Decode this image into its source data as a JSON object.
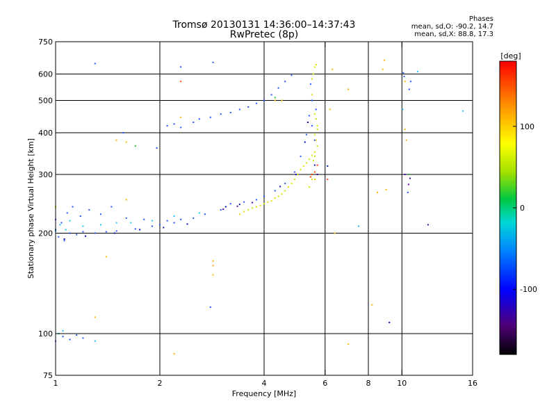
{
  "header": {
    "title_line1": "Tromsø 20130131 14:36:00–14:37:43",
    "title_line2": "RwPretec (8p)"
  },
  "phases": {
    "heading": "Phases",
    "line_o": "mean, sd,O: -90.2, 14.7",
    "line_x": "mean, sd,X:  88.8, 17.3"
  },
  "chart_data": {
    "type": "scatter",
    "xlabel": "Frequency [MHz]",
    "ylabel": "Stationary phase Virtual Height [km]",
    "x_scale": "log",
    "y_scale": "log",
    "xlim": [
      1,
      16
    ],
    "ylim": [
      75,
      750
    ],
    "x_ticks": [
      1,
      2,
      4,
      6,
      8,
      10,
      16
    ],
    "y_ticks": [
      75,
      100,
      200,
      300,
      400,
      500,
      600,
      750
    ],
    "x_gridlines": [
      2,
      4,
      6,
      8,
      10
    ],
    "y_gridlines": [
      100,
      200,
      300,
      400,
      500,
      600
    ],
    "colorbar": {
      "label": "[deg]",
      "range": [
        -180,
        180
      ],
      "ticks": [
        100,
        0,
        -100
      ],
      "colormap": "rainbow"
    },
    "series": [
      {
        "color": "#2250ff",
        "points": [
          [
            1.0,
            205
          ],
          [
            1.0,
            220
          ],
          [
            1.02,
            195
          ],
          [
            1.04,
            215
          ],
          [
            1.06,
            190
          ],
          [
            1.08,
            230
          ],
          [
            1.1,
            200
          ],
          [
            1.12,
            240
          ],
          [
            1.15,
            198
          ],
          [
            1.18,
            225
          ],
          [
            1.2,
            202
          ],
          [
            1.25,
            235
          ],
          [
            1.3,
            200
          ],
          [
            1.35,
            228
          ],
          [
            1.4,
            202
          ],
          [
            1.45,
            240
          ],
          [
            1.5,
            203
          ],
          [
            1.6,
            222
          ],
          [
            1.7,
            206
          ],
          [
            1.8,
            220
          ],
          [
            1.9,
            210
          ],
          [
            2.0,
            212
          ],
          [
            2.1,
            218
          ],
          [
            2.2,
            215
          ],
          [
            2.3,
            220
          ],
          [
            2.5,
            222
          ],
          [
            2.7,
            228
          ],
          [
            3.0,
            235
          ],
          [
            3.2,
            245
          ],
          [
            3.5,
            248
          ],
          [
            3.8,
            252
          ],
          [
            4.0,
            258
          ],
          [
            4.3,
            268
          ],
          [
            4.6,
            282
          ],
          [
            4.9,
            305
          ],
          [
            5.1,
            340
          ],
          [
            5.3,
            395
          ],
          [
            5.4,
            450
          ],
          [
            5.5,
            500
          ],
          [
            5.45,
            560
          ],
          [
            5.5,
            420
          ],
          [
            5.6,
            380
          ],
          [
            5.65,
            470
          ],
          [
            2.1,
            420
          ],
          [
            2.2,
            425
          ],
          [
            2.3,
            415
          ],
          [
            2.5,
            430
          ],
          [
            2.6,
            440
          ],
          [
            2.8,
            445
          ],
          [
            3.0,
            455
          ],
          [
            3.2,
            460
          ],
          [
            3.4,
            470
          ],
          [
            3.6,
            478
          ],
          [
            3.8,
            490
          ],
          [
            4.0,
            500
          ],
          [
            4.2,
            520
          ],
          [
            4.4,
            545
          ],
          [
            4.6,
            570
          ],
          [
            4.8,
            595
          ],
          [
            1.0,
            95
          ],
          [
            1.05,
            98
          ],
          [
            1.1,
            96
          ],
          [
            1.15,
            99
          ],
          [
            1.2,
            97
          ],
          [
            1.3,
            645
          ],
          [
            2.3,
            630
          ],
          [
            2.85,
            650
          ],
          [
            10.1,
            605
          ],
          [
            10.15,
            590
          ],
          [
            10.5,
            540
          ],
          [
            10.6,
            570
          ],
          [
            10.4,
            265
          ],
          [
            2.8,
            120
          ],
          [
            1.57,
            400
          ],
          [
            1.96,
            360
          ]
        ]
      },
      {
        "color": "#20c0ff",
        "points": [
          [
            1.0,
            203
          ],
          [
            1.03,
            212
          ],
          [
            1.07,
            205
          ],
          [
            1.1,
            218
          ],
          [
            1.2,
            210
          ],
          [
            1.35,
            212
          ],
          [
            1.5,
            215
          ],
          [
            1.65,
            215
          ],
          [
            1.9,
            218
          ],
          [
            2.2,
            225
          ],
          [
            2.6,
            230
          ],
          [
            1.05,
            102
          ],
          [
            1.02,
            100
          ],
          [
            11.1,
            610
          ],
          [
            15.0,
            465
          ],
          [
            10.05,
            470
          ],
          [
            1.3,
            95
          ],
          [
            7.5,
            210
          ]
        ]
      },
      {
        "color": "#0010b0",
        "points": [
          [
            1.06,
            192
          ],
          [
            1.22,
            196
          ],
          [
            1.48,
            200
          ],
          [
            1.75,
            205
          ],
          [
            2.05,
            208
          ],
          [
            2.4,
            213
          ],
          [
            3.1,
            240
          ],
          [
            3.4,
            244
          ],
          [
            4.45,
            276
          ],
          [
            4.95,
            300
          ],
          [
            5.25,
            375
          ],
          [
            5.35,
            430
          ],
          [
            5.6,
            320
          ],
          [
            9.2,
            108
          ],
          [
            6.1,
            318
          ]
        ]
      },
      {
        "color": "#4a00a0",
        "points": [
          [
            3.05,
            236
          ],
          [
            3.35,
            241
          ],
          [
            3.7,
            247
          ],
          [
            5.7,
            300
          ],
          [
            11.9,
            212
          ],
          [
            10.2,
            300
          ],
          [
            10.45,
            280
          ],
          [
            10.55,
            292
          ]
        ]
      },
      {
        "color": "#e0e000",
        "points": [
          [
            3.4,
            228
          ],
          [
            3.5,
            232
          ],
          [
            3.6,
            235
          ],
          [
            3.7,
            238
          ],
          [
            3.8,
            240
          ],
          [
            3.9,
            242
          ],
          [
            4.0,
            245
          ],
          [
            4.1,
            248
          ],
          [
            4.2,
            250
          ],
          [
            4.3,
            255
          ],
          [
            4.4,
            258
          ],
          [
            4.5,
            262
          ],
          [
            4.6,
            268
          ],
          [
            4.7,
            275
          ],
          [
            4.8,
            282
          ],
          [
            4.9,
            290
          ],
          [
            5.0,
            300
          ],
          [
            5.1,
            310
          ],
          [
            5.2,
            318
          ],
          [
            5.3,
            325
          ],
          [
            5.4,
            333
          ],
          [
            5.5,
            342
          ],
          [
            5.6,
            350
          ],
          [
            5.65,
            380
          ],
          [
            5.7,
            420
          ],
          [
            5.6,
            455
          ],
          [
            5.5,
            520
          ],
          [
            5.55,
            600
          ],
          [
            5.6,
            630
          ],
          [
            5.65,
            640
          ],
          [
            5.5,
            580
          ],
          [
            5.6,
            395
          ],
          [
            5.6,
            305
          ],
          [
            5.5,
            290
          ],
          [
            5.4,
            275
          ]
        ]
      },
      {
        "color": "#c8e000",
        "points": [
          [
            5.7,
            365
          ],
          [
            5.6,
            340
          ],
          [
            5.65,
            440
          ],
          [
            5.7,
            410
          ],
          [
            5.6,
            290
          ],
          [
            5.55,
            330
          ]
        ]
      },
      {
        "color": "#ffb000",
        "points": [
          [
            1.0,
            240
          ],
          [
            1.6,
            252
          ],
          [
            2.85,
            165
          ],
          [
            2.85,
            160
          ],
          [
            2.85,
            150
          ],
          [
            2.2,
            87
          ],
          [
            6.3,
            620
          ],
          [
            6.4,
            200
          ],
          [
            7.0,
            540
          ],
          [
            7.0,
            93
          ],
          [
            8.2,
            122
          ],
          [
            8.5,
            265
          ],
          [
            8.8,
            620
          ],
          [
            8.9,
            660
          ],
          [
            9.0,
            270
          ],
          [
            10.2,
            570
          ],
          [
            10.2,
            410
          ],
          [
            10.3,
            380
          ],
          [
            4.3,
            500
          ],
          [
            4.5,
            500
          ],
          [
            6.2,
            470
          ],
          [
            1.3,
            112
          ],
          [
            1.5,
            380
          ],
          [
            1.6,
            375
          ],
          [
            2.3,
            445
          ],
          [
            1.4,
            170
          ]
        ]
      },
      {
        "color": "#ff4000",
        "points": [
          [
            5.6,
            305
          ],
          [
            5.5,
            300
          ],
          [
            5.45,
            295
          ],
          [
            5.7,
            320
          ],
          [
            6.1,
            290
          ],
          [
            2.3,
            570
          ]
        ]
      },
      {
        "color": "#30c030",
        "points": [
          [
            1.7,
            365
          ],
          [
            4.3,
            510
          ],
          [
            10.5,
            300
          ]
        ]
      }
    ]
  }
}
